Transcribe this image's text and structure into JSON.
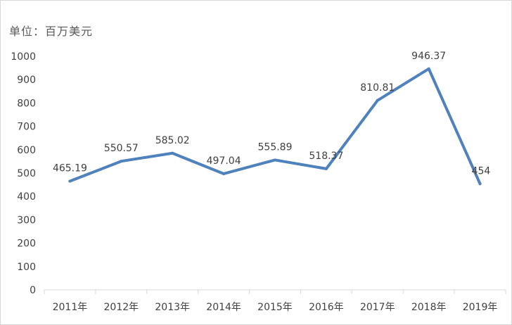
{
  "chart_data": {
    "type": "line",
    "unit_label": "单位：百万美元",
    "categories": [
      "2011年",
      "2012年",
      "2013年",
      "2014年",
      "2015年",
      "2016年",
      "2017年",
      "2018年",
      "2019年"
    ],
    "values": [
      465.19,
      550.57,
      585.02,
      497.04,
      555.89,
      518.37,
      810.81,
      946.37,
      454
    ],
    "value_labels": [
      "465.19",
      "550.57",
      "585.02",
      "497.04",
      "555.89",
      "518.37",
      "810.81",
      "946.37",
      "454"
    ],
    "ylim": [
      0,
      1000
    ],
    "yticks": [
      "0",
      "100",
      "200",
      "300",
      "400",
      "500",
      "600",
      "700",
      "800",
      "900",
      "1000"
    ],
    "line_color": "#4f81bd",
    "grid": false,
    "legend": "none"
  }
}
